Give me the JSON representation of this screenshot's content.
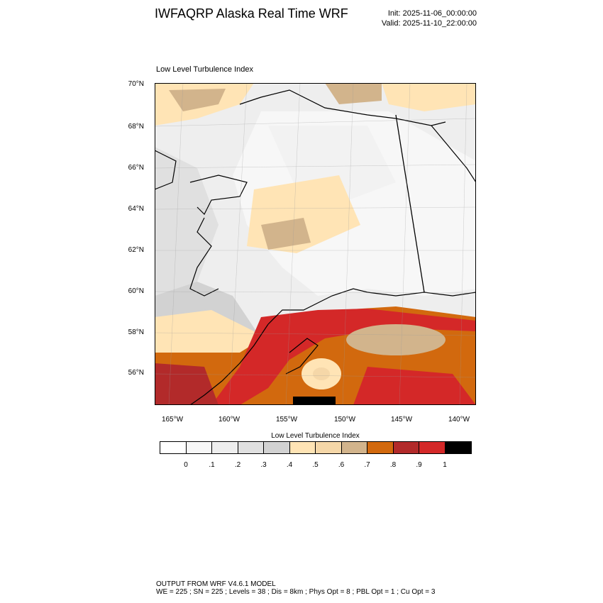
{
  "header": {
    "title": "IWFAQRP Alaska Real Time WRF",
    "init": "Init: 2025-11-06_00:00:00",
    "valid": "Valid: 2025-11-10_22:00:00"
  },
  "plot_title": "Low Level Turbulence Index",
  "axes": {
    "lat_labels": [
      "70°N",
      "68°N",
      "66°N",
      "64°N",
      "62°N",
      "60°N",
      "58°N",
      "56°N"
    ],
    "lon_labels": [
      "165°W",
      "160°W",
      "155°W",
      "150°W",
      "145°W",
      "140°W"
    ]
  },
  "colorbar": {
    "title": "Low Level Turbulence Index",
    "labels": [
      "0",
      ".1",
      ".2",
      ".3",
      ".4",
      ".5",
      ".6",
      ".7",
      ".8",
      ".9",
      "1"
    ],
    "colors": [
      "#ffffff",
      "#f7f7f7",
      "#eeeeee",
      "#e0e0e0",
      "#d2d2d2",
      "#ffe4b5",
      "#f5d7a8",
      "#d2b48c",
      "#d2690e",
      "#b22a2a",
      "#d42828",
      "#000000"
    ]
  },
  "footer": {
    "line1": "OUTPUT FROM WRF V4.6.1 MODEL",
    "line2": "WE = 225 ; SN = 225 ; Levels = 38 ; Dis = 8km ; Phys Opt = 8 ; PBL Opt = 1 ; Cu Opt = 3"
  }
}
